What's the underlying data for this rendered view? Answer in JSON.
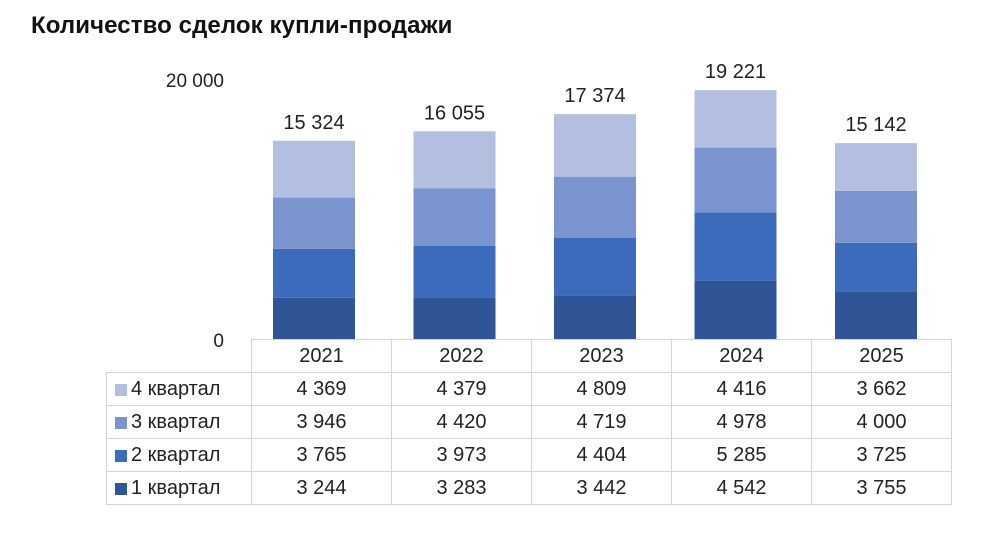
{
  "title": "Количество сделок купли-продажи",
  "chart_data": {
    "type": "bar",
    "stacked": true,
    "title": "Количество сделок купли-продажи",
    "categories": [
      "2021",
      "2022",
      "2023",
      "2024",
      "2025"
    ],
    "series": [
      {
        "name": "1 квартал",
        "color": "#2f5597",
        "values": [
          3244,
          3283,
          3442,
          4542,
          3755
        ],
        "labels": [
          "3 244",
          "3 283",
          "3 442",
          "4 542",
          "3 755"
        ]
      },
      {
        "name": "2 квартал",
        "color": "#3d6bbb",
        "values": [
          3765,
          3973,
          4404,
          5285,
          3725
        ],
        "labels": [
          "3 765",
          "3 973",
          "4 404",
          "5 285",
          "3 725"
        ]
      },
      {
        "name": "3 квартал",
        "color": "#7a94d0",
        "values": [
          3946,
          4420,
          4719,
          4978,
          4000
        ],
        "labels": [
          "3 946",
          "4 420",
          "4 719",
          "4 978",
          "4 000"
        ]
      },
      {
        "name": "4 квартал",
        "color": "#b3bfe0",
        "values": [
          4369,
          4379,
          4809,
          4416,
          3662
        ],
        "labels": [
          "4 369",
          "4 379",
          "4 809",
          "4 416",
          "3 662"
        ]
      }
    ],
    "totals": [
      15324,
      16055,
      17374,
      19221,
      15142
    ],
    "total_labels": [
      "15 324",
      "16 055",
      "17 374",
      "19 221",
      "15 142"
    ],
    "ylim": [
      0,
      20000
    ],
    "y_tick_labels": [
      "0",
      "20 000"
    ],
    "y_ticks": [
      0,
      20000
    ],
    "grid": false,
    "legend": "data table below chart, rows listed from 4 квартал to 1 квартал"
  }
}
